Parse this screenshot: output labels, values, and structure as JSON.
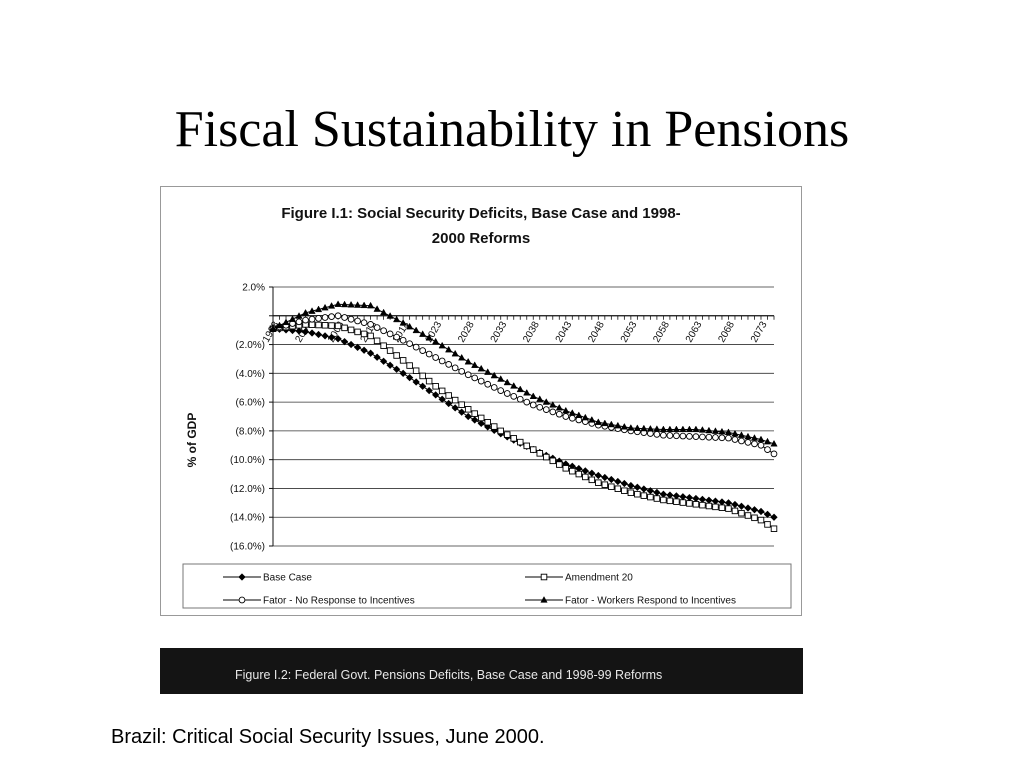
{
  "slide": {
    "title": "Fiscal Sustainability in Pensions",
    "footer": "Brazil:  Critical Social Security Issues, June 2000."
  },
  "figure2": {
    "title": "Figure I.2:  Federal Govt. Pensions Deficits, Base Case and 1998-99 Reforms"
  },
  "chart_data": {
    "type": "line",
    "title_lines": [
      "Figure I.1: Social Security Deficits, Base Case and 1998-",
      "2000 Reforms"
    ],
    "ylabel": "% of GDP",
    "xlabel": "",
    "ylim": [
      -16,
      2
    ],
    "y_ticks": [
      2,
      0,
      -2,
      -4,
      -6,
      -8,
      -10,
      -12,
      -14,
      -16
    ],
    "y_tick_labels": [
      "2.0%",
      "",
      "(2.0%)",
      "(4.0%)",
      "(6.0%)",
      "(8.0%)",
      "(10.0%)",
      "(12.0%)",
      "(14.0%)",
      "(16.0%)"
    ],
    "xlim": [
      1998,
      2075
    ],
    "x_tick_labels": [
      "1998",
      "2003",
      "2008",
      "2013",
      "2018",
      "2023",
      "2028",
      "2033",
      "2038",
      "2043",
      "2048",
      "2053",
      "2058",
      "2063",
      "2068",
      "2073"
    ],
    "x": [
      1998,
      2003,
      2008,
      2013,
      2018,
      2023,
      2028,
      2033,
      2038,
      2043,
      2048,
      2053,
      2058,
      2063,
      2068,
      2073,
      2075
    ],
    "series": [
      {
        "name": "Base Case",
        "marker": "diamond",
        "values": [
          -0.9,
          -1.1,
          -1.6,
          -2.6,
          -4.0,
          -5.5,
          -7.0,
          -8.2,
          -9.3,
          -10.3,
          -11.1,
          -11.8,
          -12.4,
          -12.7,
          -13.0,
          -13.6,
          -14.0
        ]
      },
      {
        "name": "Amendment 20",
        "marker": "square",
        "values": [
          -0.9,
          -0.6,
          -0.7,
          -1.4,
          -3.1,
          -4.9,
          -6.5,
          -8.0,
          -9.3,
          -10.6,
          -11.6,
          -12.3,
          -12.8,
          -13.1,
          -13.4,
          -14.2,
          -14.8
        ]
      },
      {
        "name": "Fator - No Response to Incentives",
        "marker": "circle",
        "values": [
          -0.9,
          -0.3,
          0.0,
          -0.6,
          -1.7,
          -2.9,
          -4.1,
          -5.2,
          -6.2,
          -7.0,
          -7.6,
          -8.0,
          -8.3,
          -8.4,
          -8.5,
          -9.0,
          -9.6
        ]
      },
      {
        "name": "Fator - Workers Respond to Incentives",
        "marker": "triangle",
        "values": [
          -0.9,
          0.2,
          0.8,
          0.7,
          -0.5,
          -1.8,
          -3.2,
          -4.4,
          -5.6,
          -6.6,
          -7.4,
          -7.8,
          -7.9,
          -7.9,
          -8.1,
          -8.6,
          -8.9
        ]
      }
    ],
    "legend": {
      "placement": "bottom",
      "entries": [
        "Base Case",
        "Amendment 20",
        "Fator - No Response to Incentives",
        "Fator - Workers Respond to Incentives"
      ]
    },
    "grid": "horizontal"
  }
}
